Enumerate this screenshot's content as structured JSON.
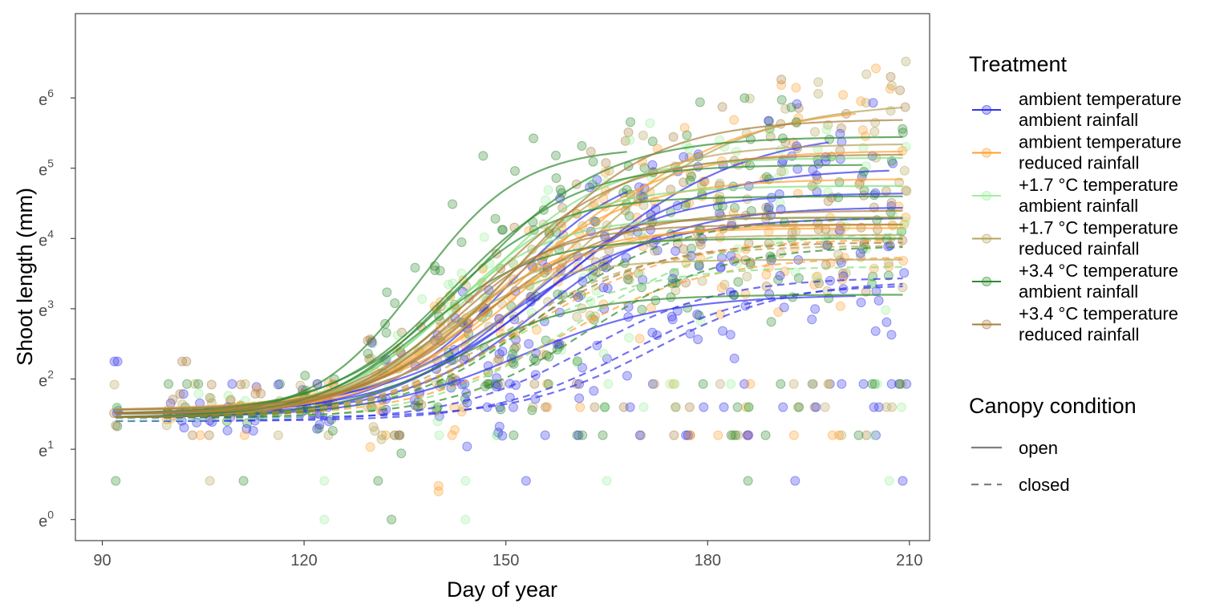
{
  "chart_data": {
    "type": "scatter",
    "xlabel": "Day of year",
    "ylabel": "Shoot length (mm)",
    "x_ticks": [
      90,
      120,
      150,
      180,
      210
    ],
    "xlim": [
      86,
      213
    ],
    "y_ticks": [
      0,
      1,
      2,
      3,
      4,
      5,
      6
    ],
    "y_tick_base": "e",
    "y_scale": "log",
    "ylim": [
      -0.3,
      7.2
    ],
    "grid": false,
    "legend_position": "right",
    "treatment_legend": {
      "title": "Treatment",
      "entries": [
        {
          "line1": "ambient temperature",
          "line2": "ambient rainfall",
          "color": "#3333ee"
        },
        {
          "line1": "ambient temperature",
          "line2": "reduced rainfall",
          "color": "#ff9f2e"
        },
        {
          "line1": "+1.7 °C temperature",
          "line2": "ambient rainfall",
          "color": "#9df09d"
        },
        {
          "line1": "+1.7 °C temperature",
          "line2": "reduced rainfall",
          "color": "#b5a45a"
        },
        {
          "line1": "+3.4 °C temperature",
          "line2": "ambient rainfall",
          "color": "#2f8a2f"
        },
        {
          "line1": "+3.4 °C temperature",
          "line2": "reduced rainfall",
          "color": "#a87e3a"
        }
      ]
    },
    "canopy_legend": {
      "title": "Canopy condition",
      "entries": [
        {
          "label": "open",
          "dash": "solid"
        },
        {
          "label": "closed",
          "dash": "dashed"
        }
      ]
    },
    "sample_days": [
      92,
      100,
      102,
      104,
      106,
      109,
      111,
      113,
      116,
      120,
      122,
      124,
      130,
      132,
      134,
      137,
      140,
      142,
      144,
      147,
      149,
      151,
      154,
      156,
      158,
      161,
      163,
      165,
      168,
      170,
      172,
      175,
      177,
      179,
      182,
      184,
      186,
      189,
      191,
      193,
      196,
      198,
      200,
      203,
      205,
      207,
      209
    ],
    "logistic_curves_ln_scale": [
      {
        "treatment": 0,
        "canopy": "open",
        "lower": 1.55,
        "upper": 5.55,
        "midpoint": 160,
        "rate": 0.08,
        "x_end": 198
      },
      {
        "treatment": 0,
        "canopy": "open",
        "lower": 1.5,
        "upper": 5.0,
        "midpoint": 156,
        "rate": 0.09,
        "x_end": 207
      },
      {
        "treatment": 0,
        "canopy": "open",
        "lower": 1.45,
        "upper": 4.65,
        "midpoint": 152,
        "rate": 0.1,
        "x_end": 209
      },
      {
        "treatment": 0,
        "canopy": "open",
        "lower": 1.5,
        "upper": 4.45,
        "midpoint": 155,
        "rate": 0.1,
        "x_end": 209
      },
      {
        "treatment": 0,
        "canopy": "open",
        "lower": 1.5,
        "upper": 4.3,
        "midpoint": 150,
        "rate": 0.09,
        "x_end": 209
      },
      {
        "treatment": 0,
        "canopy": "open",
        "lower": 1.5,
        "upper": 5.1,
        "midpoint": 150,
        "rate": 0.11,
        "x_end": 168
      },
      {
        "treatment": 0,
        "canopy": "open",
        "lower": 1.45,
        "upper": 3.2,
        "midpoint": 152,
        "rate": 0.09,
        "x_end": 202
      },
      {
        "treatment": 0,
        "canopy": "closed",
        "lower": 1.4,
        "upper": 3.45,
        "midpoint": 162,
        "rate": 0.1,
        "x_end": 209
      },
      {
        "treatment": 0,
        "canopy": "closed",
        "lower": 1.4,
        "upper": 3.35,
        "midpoint": 168,
        "rate": 0.1,
        "x_end": 209
      },
      {
        "treatment": 0,
        "canopy": "closed",
        "lower": 1.45,
        "upper": 3.4,
        "midpoint": 172,
        "rate": 0.1,
        "x_end": 209
      },
      {
        "treatment": 1,
        "canopy": "open",
        "lower": 1.55,
        "upper": 5.9,
        "midpoint": 158,
        "rate": 0.08,
        "x_end": 202
      },
      {
        "treatment": 1,
        "canopy": "open",
        "lower": 1.5,
        "upper": 5.25,
        "midpoint": 152,
        "rate": 0.1,
        "x_end": 209
      },
      {
        "treatment": 1,
        "canopy": "open",
        "lower": 1.5,
        "upper": 4.85,
        "midpoint": 148,
        "rate": 0.1,
        "x_end": 209
      },
      {
        "treatment": 1,
        "canopy": "open",
        "lower": 1.45,
        "upper": 4.2,
        "midpoint": 145,
        "rate": 0.1,
        "x_end": 209
      },
      {
        "treatment": 1,
        "canopy": "open",
        "lower": 1.45,
        "upper": 4.15,
        "midpoint": 143,
        "rate": 0.11,
        "x_end": 209
      },
      {
        "treatment": 1,
        "canopy": "closed",
        "lower": 1.45,
        "upper": 4.0,
        "midpoint": 153,
        "rate": 0.09,
        "x_end": 209
      },
      {
        "treatment": 1,
        "canopy": "closed",
        "lower": 1.45,
        "upper": 3.75,
        "midpoint": 158,
        "rate": 0.09,
        "x_end": 209
      },
      {
        "treatment": 2,
        "canopy": "open",
        "lower": 1.5,
        "upper": 5.15,
        "midpoint": 146,
        "rate": 0.11,
        "x_end": 209
      },
      {
        "treatment": 2,
        "canopy": "open",
        "lower": 1.5,
        "upper": 4.75,
        "midpoint": 143,
        "rate": 0.11,
        "x_end": 209
      },
      {
        "treatment": 2,
        "canopy": "open",
        "lower": 1.45,
        "upper": 4.3,
        "midpoint": 140,
        "rate": 0.12,
        "x_end": 209
      },
      {
        "treatment": 2,
        "canopy": "closed",
        "lower": 1.4,
        "upper": 4.1,
        "midpoint": 160,
        "rate": 0.09,
        "x_end": 209
      },
      {
        "treatment": 2,
        "canopy": "closed",
        "lower": 1.45,
        "upper": 3.6,
        "midpoint": 150,
        "rate": 0.1,
        "x_end": 209
      },
      {
        "treatment": 3,
        "canopy": "open",
        "lower": 1.55,
        "upper": 5.95,
        "midpoint": 160,
        "rate": 0.08,
        "x_end": 209
      },
      {
        "treatment": 3,
        "canopy": "open",
        "lower": 1.5,
        "upper": 5.35,
        "midpoint": 150,
        "rate": 0.1,
        "x_end": 209
      },
      {
        "treatment": 3,
        "canopy": "open",
        "lower": 1.5,
        "upper": 4.05,
        "midpoint": 142,
        "rate": 0.11,
        "x_end": 209
      },
      {
        "treatment": 3,
        "canopy": "open",
        "lower": 1.5,
        "upper": 3.7,
        "midpoint": 140,
        "rate": 0.12,
        "x_end": 209
      },
      {
        "treatment": 3,
        "canopy": "closed",
        "lower": 1.45,
        "upper": 3.9,
        "midpoint": 150,
        "rate": 0.1,
        "x_end": 209
      },
      {
        "treatment": 4,
        "canopy": "open",
        "lower": 1.5,
        "upper": 5.45,
        "midpoint": 145,
        "rate": 0.1,
        "x_end": 209
      },
      {
        "treatment": 4,
        "canopy": "open",
        "lower": 1.5,
        "upper": 5.05,
        "midpoint": 142,
        "rate": 0.11,
        "x_end": 203
      },
      {
        "treatment": 4,
        "canopy": "open",
        "lower": 1.45,
        "upper": 4.6,
        "midpoint": 140,
        "rate": 0.12,
        "x_end": 209
      },
      {
        "treatment": 4,
        "canopy": "open",
        "lower": 1.45,
        "upper": 5.3,
        "midpoint": 137,
        "rate": 0.13,
        "x_end": 168
      },
      {
        "treatment": 4,
        "canopy": "open",
        "lower": 1.45,
        "upper": 4.0,
        "midpoint": 138,
        "rate": 0.12,
        "x_end": 209
      },
      {
        "treatment": 4,
        "canopy": "open",
        "lower": 1.45,
        "upper": 3.2,
        "midpoint": 143,
        "rate": 0.11,
        "x_end": 209
      },
      {
        "treatment": 4,
        "canopy": "closed",
        "lower": 1.45,
        "upper": 4.3,
        "midpoint": 155,
        "rate": 0.1,
        "x_end": 209
      },
      {
        "treatment": 4,
        "canopy": "closed",
        "lower": 1.45,
        "upper": 3.9,
        "midpoint": 162,
        "rate": 0.1,
        "x_end": 209
      },
      {
        "treatment": 5,
        "canopy": "open",
        "lower": 1.55,
        "upper": 5.7,
        "midpoint": 152,
        "rate": 0.1,
        "x_end": 209
      },
      {
        "treatment": 5,
        "canopy": "open",
        "lower": 1.5,
        "upper": 5.2,
        "midpoint": 147,
        "rate": 0.1,
        "x_end": 209
      },
      {
        "treatment": 5,
        "canopy": "open",
        "lower": 1.5,
        "upper": 4.3,
        "midpoint": 143,
        "rate": 0.12,
        "x_end": 209
      },
      {
        "treatment": 5,
        "canopy": "open",
        "lower": 1.45,
        "upper": 4.2,
        "midpoint": 141,
        "rate": 0.12,
        "x_end": 209
      },
      {
        "treatment": 5,
        "canopy": "open",
        "lower": 1.5,
        "upper": 4.4,
        "midpoint": 147,
        "rate": 0.1,
        "x_end": 209
      },
      {
        "treatment": 5,
        "canopy": "closed",
        "lower": 1.45,
        "upper": 3.95,
        "midpoint": 152,
        "rate": 0.1,
        "x_end": 209
      }
    ]
  }
}
